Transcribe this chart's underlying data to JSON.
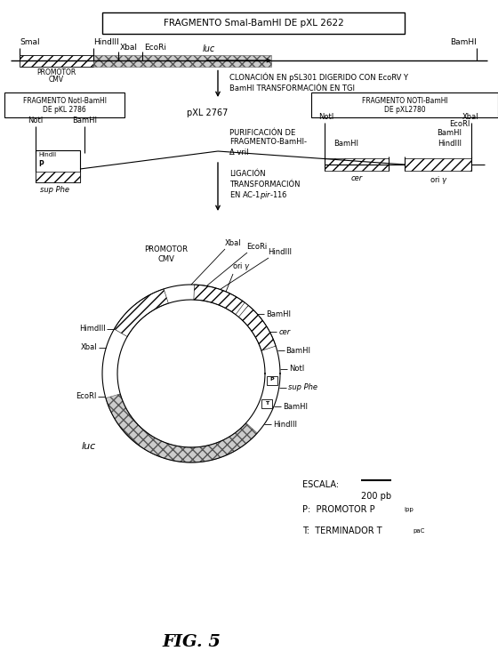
{
  "bg_color": "#ffffff",
  "top_box_text": "FRAGMENTO SmaI-BamHI DE pXL 2622",
  "pXL2767_label": "pXL 2767",
  "left_box_line1": "FRAGMENTO NotI-BamHI",
  "left_box_line2": "DE pKL 2786",
  "right_box_line1": "FRAGMENTO NOTI-BamHI",
  "right_box_line2": "DE pXL2780"
}
